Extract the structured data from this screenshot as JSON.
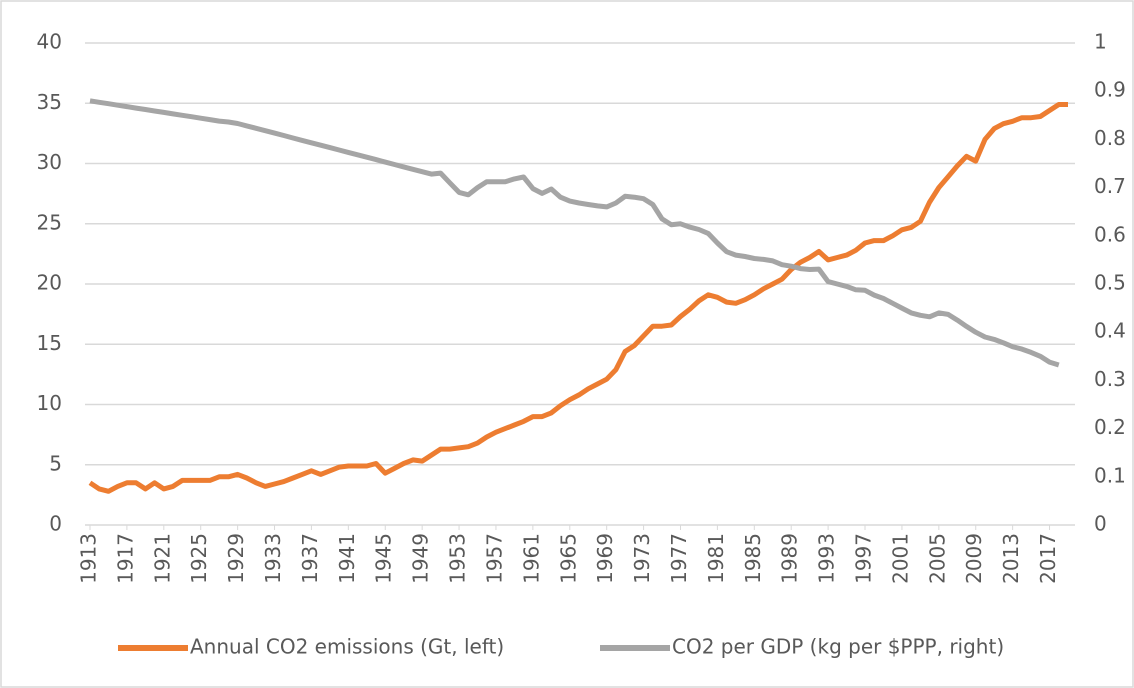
{
  "chart_data": {
    "type": "line",
    "x": [
      1913,
      1914,
      1915,
      1916,
      1917,
      1918,
      1919,
      1920,
      1921,
      1922,
      1923,
      1924,
      1925,
      1926,
      1927,
      1928,
      1929,
      1930,
      1931,
      1932,
      1933,
      1934,
      1935,
      1936,
      1937,
      1938,
      1939,
      1940,
      1941,
      1942,
      1943,
      1944,
      1945,
      1946,
      1947,
      1948,
      1949,
      1950,
      1951,
      1952,
      1953,
      1954,
      1955,
      1956,
      1957,
      1958,
      1959,
      1960,
      1961,
      1962,
      1963,
      1964,
      1965,
      1966,
      1967,
      1968,
      1969,
      1970,
      1971,
      1972,
      1973,
      1974,
      1975,
      1976,
      1977,
      1978,
      1979,
      1980,
      1981,
      1982,
      1983,
      1984,
      1985,
      1986,
      1987,
      1988,
      1989,
      1990,
      1991,
      1992,
      1993,
      1994,
      1995,
      1996,
      1997,
      1998,
      1999,
      2000,
      2001,
      2002,
      2003,
      2004,
      2005,
      2006,
      2007,
      2008,
      2009,
      2010,
      2011,
      2012,
      2013,
      2014,
      2015,
      2016,
      2017,
      2018,
      2019
    ],
    "xlim": [
      1913,
      2019
    ],
    "xticks": [
      1913,
      1917,
      1921,
      1925,
      1929,
      1933,
      1937,
      1941,
      1945,
      1949,
      1953,
      1957,
      1961,
      1965,
      1969,
      1973,
      1977,
      1981,
      1985,
      1989,
      1993,
      1997,
      2001,
      2005,
      2009,
      2013,
      2017
    ],
    "ylim": [
      0,
      40
    ],
    "yticks": [
      0,
      5,
      10,
      15,
      20,
      25,
      30,
      35,
      40
    ],
    "y2lim": [
      0,
      1
    ],
    "y2ticks": [
      0,
      0.1,
      0.2,
      0.3,
      0.4,
      0.5,
      0.6,
      0.7,
      0.8,
      0.9,
      1
    ],
    "grid": true,
    "legend": "bottom",
    "series": [
      {
        "name": "Annual CO2 emissions (Gt, left)",
        "color": "#ed7d31",
        "axis": "y",
        "values": [
          3.5,
          3.0,
          2.8,
          3.2,
          3.5,
          3.5,
          3.0,
          3.5,
          3.0,
          3.2,
          3.7,
          3.7,
          3.7,
          3.7,
          4.0,
          4.0,
          4.2,
          3.9,
          3.5,
          3.2,
          3.4,
          3.6,
          3.9,
          4.2,
          4.5,
          4.2,
          4.5,
          4.8,
          4.9,
          4.9,
          4.9,
          5.1,
          4.3,
          4.7,
          5.1,
          5.4,
          5.3,
          5.8,
          6.3,
          6.3,
          6.4,
          6.5,
          6.8,
          7.3,
          7.7,
          8.0,
          8.3,
          8.6,
          9.0,
          9.0,
          9.3,
          9.9,
          10.4,
          10.8,
          11.3,
          11.7,
          12.1,
          12.9,
          14.4,
          14.9,
          15.7,
          16.5,
          16.5,
          16.6,
          17.3,
          17.9,
          18.6,
          19.1,
          18.9,
          18.5,
          18.4,
          18.7,
          19.1,
          19.6,
          20.0,
          20.4,
          21.2,
          21.8,
          22.2,
          22.7,
          22.0,
          22.2,
          22.4,
          22.8,
          23.4,
          23.6,
          23.6,
          24.0,
          24.5,
          24.7,
          25.2,
          26.8,
          28.0,
          28.9,
          29.8,
          30.6,
          30.2,
          32.0,
          32.9,
          33.3,
          33.5,
          33.8,
          33.8,
          33.9,
          34.4,
          34.9,
          34.9
        ]
      },
      {
        "name": "CO2 per GDP (kg per $PPP, right)",
        "color": "#a5a5a5",
        "axis": "y2",
        "values": [
          0.88,
          0.877,
          0.874,
          0.871,
          0.868,
          0.865,
          0.862,
          0.859,
          0.856,
          0.853,
          0.85,
          0.847,
          0.844,
          0.841,
          0.838,
          0.836,
          0.833,
          0.828,
          0.823,
          0.818,
          0.813,
          0.808,
          0.803,
          0.798,
          0.793,
          0.788,
          0.783,
          0.778,
          0.773,
          0.768,
          0.763,
          0.758,
          0.753,
          0.748,
          0.743,
          0.738,
          0.733,
          0.728,
          0.73,
          0.71,
          0.69,
          0.685,
          0.7,
          0.712,
          0.712,
          0.712,
          0.718,
          0.722,
          0.698,
          0.688,
          0.697,
          0.68,
          0.672,
          0.668,
          0.665,
          0.662,
          0.66,
          0.668,
          0.682,
          0.68,
          0.677,
          0.665,
          0.635,
          0.623,
          0.625,
          0.618,
          0.613,
          0.605,
          0.585,
          0.567,
          0.56,
          0.557,
          0.553,
          0.551,
          0.548,
          0.54,
          0.537,
          0.532,
          0.53,
          0.531,
          0.505,
          0.5,
          0.495,
          0.488,
          0.487,
          0.477,
          0.47,
          0.46,
          0.45,
          0.44,
          0.435,
          0.432,
          0.44,
          0.437,
          0.425,
          0.412,
          0.4,
          0.39,
          0.385,
          0.378,
          0.37,
          0.365,
          0.358,
          0.35,
          0.338,
          0.332,
          null
        ]
      }
    ]
  }
}
